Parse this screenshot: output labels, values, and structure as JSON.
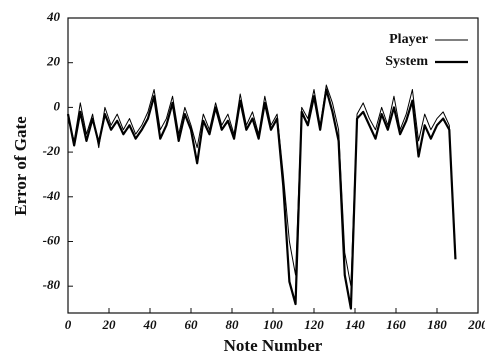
{
  "chart_data": {
    "type": "line",
    "x_label": "Note Number",
    "y_label": "Error of Gate",
    "x": [
      0,
      3,
      6,
      9,
      12,
      15,
      18,
      21,
      24,
      27,
      30,
      33,
      36,
      39,
      42,
      45,
      48,
      51,
      54,
      57,
      60,
      63,
      66,
      69,
      72,
      75,
      78,
      81,
      84,
      87,
      90,
      93,
      96,
      99,
      102,
      105,
      108,
      111,
      114,
      117,
      120,
      123,
      126,
      129,
      132,
      135,
      138,
      141,
      144,
      147,
      150,
      153,
      156,
      159,
      162,
      165,
      168,
      171,
      174,
      177,
      180,
      183,
      186,
      189
    ],
    "series": [
      {
        "name": "Player",
        "color": "#000000",
        "values": [
          -5,
          -15,
          2,
          -12,
          -3,
          -18,
          0,
          -8,
          -3,
          -10,
          -5,
          -12,
          -8,
          -2,
          8,
          -10,
          -5,
          5,
          -12,
          0,
          -8,
          -18,
          -3,
          -10,
          2,
          -8,
          -3,
          -12,
          6,
          -8,
          -2,
          -12,
          5,
          -8,
          -3,
          -30,
          -60,
          -75,
          0,
          -5,
          8,
          -8,
          10,
          2,
          -10,
          -65,
          -80,
          -3,
          2,
          -5,
          -10,
          0,
          -8,
          5,
          -10,
          -3,
          8,
          -15,
          -3,
          -10,
          -5,
          -2,
          -8,
          -65
        ]
      },
      {
        "name": "System",
        "color": "#000000",
        "values": [
          -3,
          -17,
          -2,
          -15,
          -5,
          -16,
          -3,
          -10,
          -6,
          -12,
          -8,
          -14,
          -10,
          -5,
          5,
          -14,
          -8,
          2,
          -15,
          -3,
          -10,
          -25,
          -6,
          -12,
          0,
          -10,
          -6,
          -14,
          3,
          -10,
          -5,
          -14,
          2,
          -10,
          -5,
          -35,
          -78,
          -88,
          -2,
          -8,
          5,
          -10,
          8,
          -2,
          -15,
          -75,
          -90,
          -5,
          -2,
          -8,
          -14,
          -3,
          -10,
          0,
          -12,
          -6,
          3,
          -22,
          -8,
          -14,
          -8,
          -5,
          -10,
          -68
        ]
      }
    ],
    "xlim": [
      0,
      200
    ],
    "xticks": [
      0,
      20,
      40,
      60,
      80,
      100,
      120,
      140,
      160,
      180,
      200
    ],
    "ylim": [
      -92,
      40
    ],
    "yticks": [
      -80,
      -60,
      -40,
      -20,
      0,
      20,
      40
    ],
    "legend": "upper right"
  }
}
